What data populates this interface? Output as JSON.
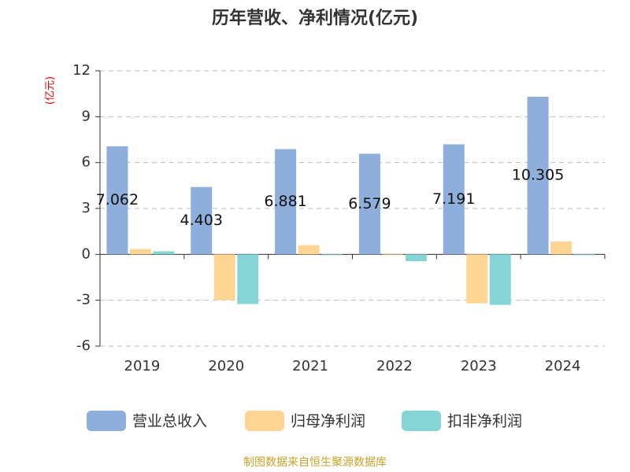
{
  "chart_data": {
    "type": "bar",
    "title": "历年营收、净利情况(亿元)",
    "y_label": "(亿元)",
    "source": "制图数据来自恒生聚源数据库",
    "categories": [
      "2019",
      "2020",
      "2021",
      "2022",
      "2023",
      "2024"
    ],
    "series": [
      {
        "name": "营业总收入",
        "color": "#8eaedb",
        "values": [
          7.062,
          4.403,
          6.881,
          6.579,
          7.191,
          10.305
        ],
        "show_labels": true
      },
      {
        "name": "归母净利润",
        "color": "#ffd594",
        "values": [
          0.35,
          -3.0,
          0.6,
          -0.05,
          -3.2,
          0.85
        ]
      },
      {
        "name": "扣非净利润",
        "color": "#86d5d6",
        "values": [
          0.2,
          -3.25,
          -0.05,
          -0.45,
          -3.3,
          -0.05
        ]
      }
    ],
    "ylim": [
      -6,
      12
    ],
    "yticks": [
      -6,
      -3,
      0,
      3,
      6,
      9,
      12
    ],
    "grid": true
  }
}
